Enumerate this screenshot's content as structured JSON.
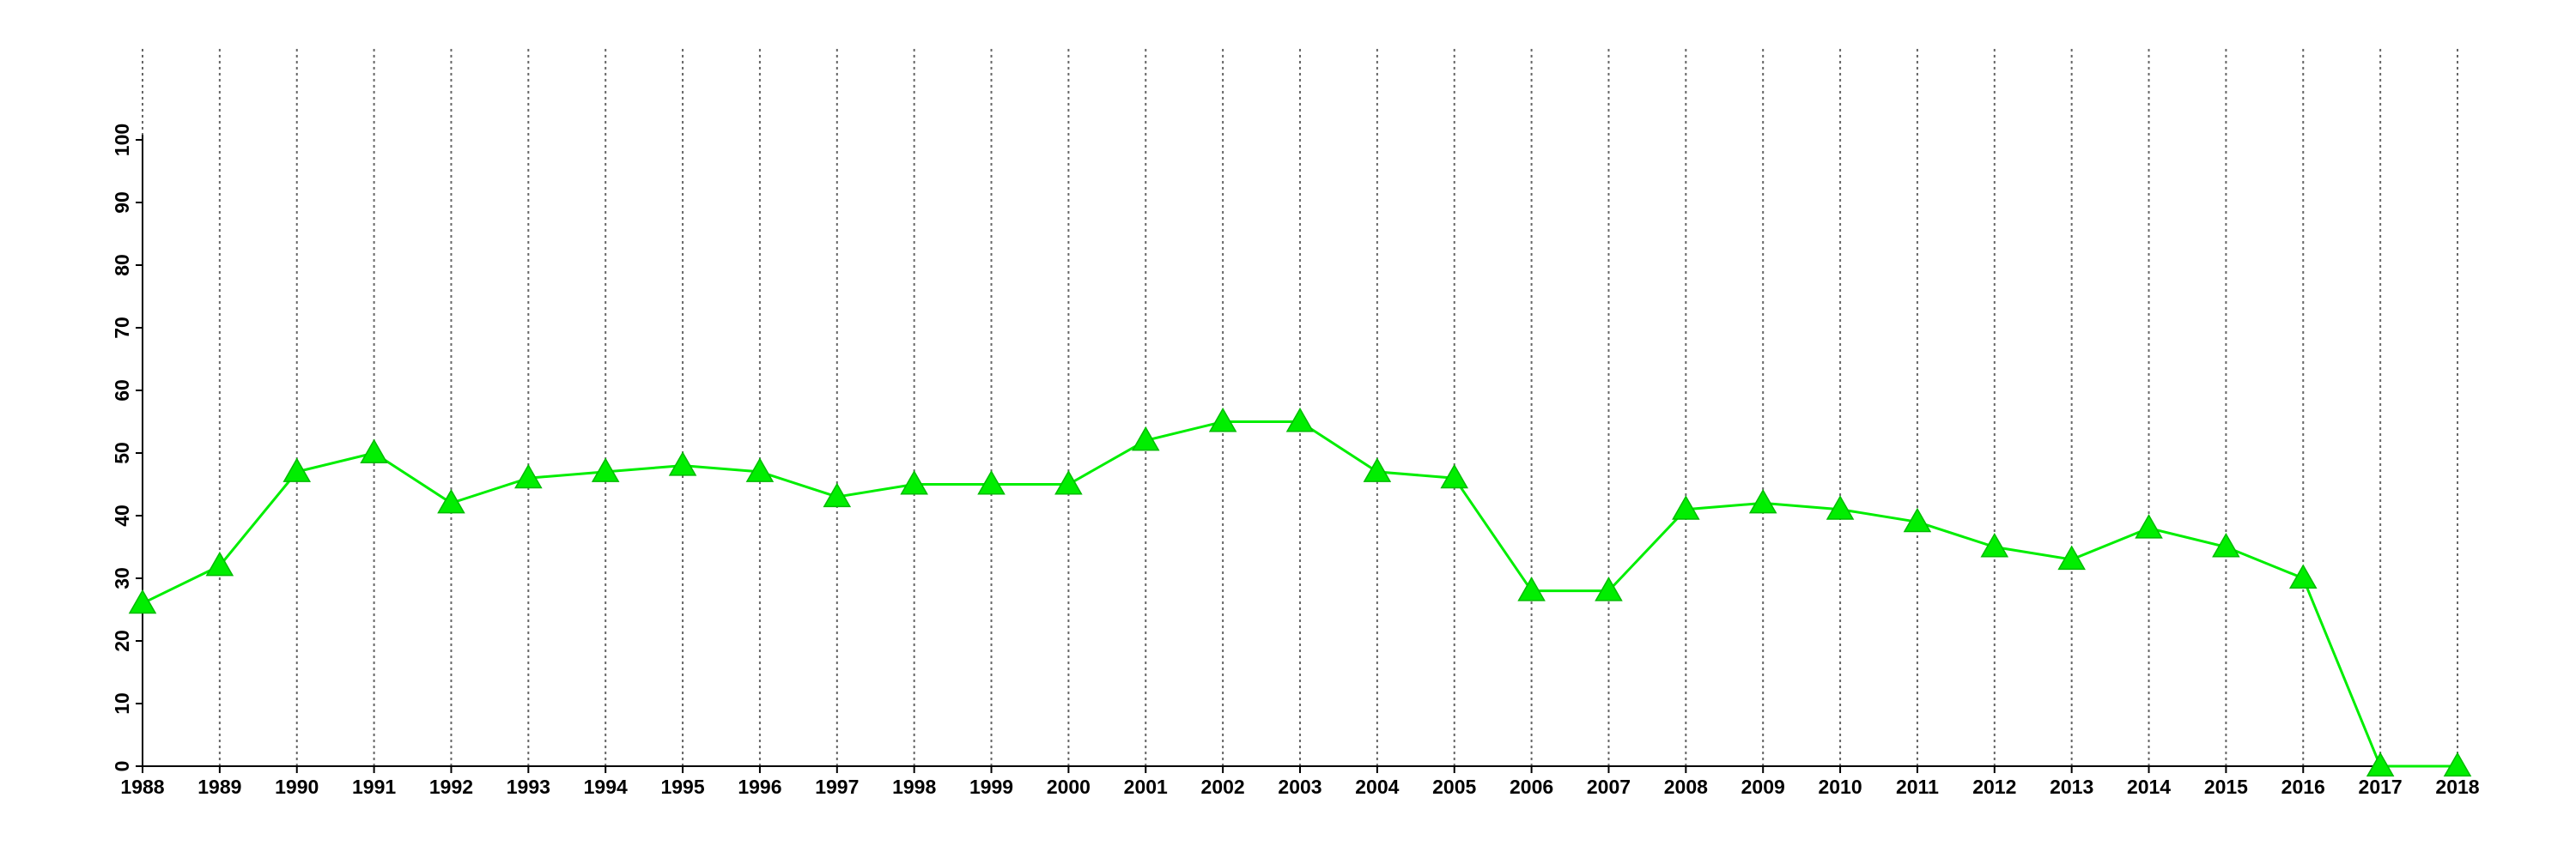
{
  "chart_data": {
    "type": "line",
    "x": [
      1988,
      1989,
      1990,
      1991,
      1992,
      1993,
      1994,
      1995,
      1996,
      1997,
      1998,
      1999,
      2000,
      2001,
      2002,
      2003,
      2004,
      2005,
      2006,
      2007,
      2008,
      2009,
      2010,
      2011,
      2012,
      2013,
      2014,
      2015,
      2016,
      2017,
      2018
    ],
    "values": [
      26,
      32,
      47,
      50,
      42,
      46,
      47,
      48,
      47,
      43,
      45,
      45,
      45,
      52,
      55,
      55,
      47,
      46,
      28,
      28,
      41,
      42,
      41,
      39,
      35,
      33,
      38,
      35,
      30,
      0,
      0
    ],
    "color": "#00ee00",
    "xlim": [
      1988,
      2018
    ],
    "xticks": [
      1988,
      1989,
      1990,
      1991,
      1992,
      1993,
      1994,
      1995,
      1996,
      1997,
      1998,
      1999,
      2000,
      2001,
      2002,
      2003,
      2004,
      2005,
      2006,
      2007,
      2008,
      2009,
      2010,
      2011,
      2012,
      2013,
      2014,
      2015,
      2016,
      2017,
      2018
    ],
    "ylim": [
      0,
      100
    ],
    "yticks": [
      0,
      10,
      20,
      30,
      40,
      50,
      60,
      70,
      80,
      90,
      100
    ],
    "grid": true
  }
}
